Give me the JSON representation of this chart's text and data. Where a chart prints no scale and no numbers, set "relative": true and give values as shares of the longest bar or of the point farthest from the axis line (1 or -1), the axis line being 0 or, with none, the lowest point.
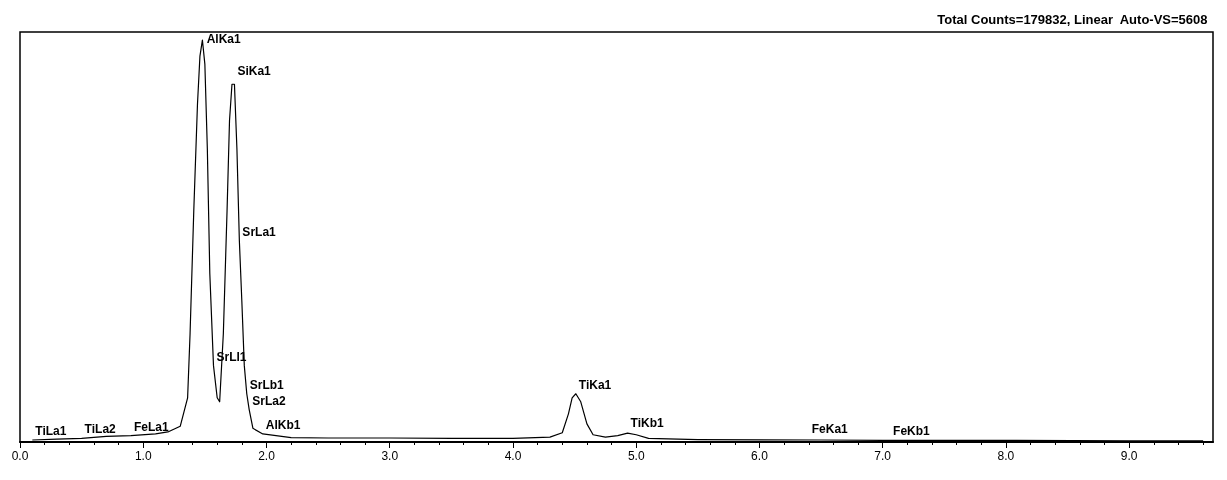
{
  "chart_data": {
    "type": "line",
    "title": "Total Counts=179832, Linear  Auto-VS=5608",
    "relative": true,
    "xlim": [
      0,
      9.68
    ],
    "xticks": [
      {
        "value": 0,
        "label": "0.0"
      },
      {
        "value": 1,
        "label": "1.0"
      },
      {
        "value": 2,
        "label": "2.0"
      },
      {
        "value": 3,
        "label": "3.0"
      },
      {
        "value": 4,
        "label": "4.0"
      },
      {
        "value": 5,
        "label": "5.0"
      },
      {
        "value": 6,
        "label": "6.0"
      },
      {
        "value": 7,
        "label": "7.0"
      },
      {
        "value": 8,
        "label": "8.0"
      },
      {
        "value": 9,
        "label": "9.0"
      }
    ],
    "series": [
      {
        "color": "#000000",
        "x": [
          0.1,
          0.3,
          0.5,
          0.7,
          0.9,
          1.1,
          1.2,
          1.3,
          1.36,
          1.38,
          1.41,
          1.44,
          1.46,
          1.48,
          1.5,
          1.52,
          1.54,
          1.57,
          1.6,
          1.62,
          1.65,
          1.68,
          1.7,
          1.72,
          1.74,
          1.76,
          1.78,
          1.8,
          1.82,
          1.84,
          1.86,
          1.89,
          1.97,
          2.2,
          2.5,
          3.0,
          3.5,
          4.0,
          4.3,
          4.4,
          4.45,
          4.48,
          4.51,
          4.55,
          4.6,
          4.65,
          4.75,
          4.85,
          4.93,
          5.0,
          5.1,
          5.5,
          6.5,
          7.0,
          8.0,
          9.0,
          9.6
        ],
        "values": [
          0.005,
          0.007,
          0.009,
          0.014,
          0.016,
          0.02,
          0.025,
          0.039,
          0.11,
          0.27,
          0.575,
          0.84,
          0.96,
          1.0,
          0.94,
          0.73,
          0.42,
          0.19,
          0.11,
          0.1,
          0.27,
          0.575,
          0.8,
          0.89,
          0.89,
          0.73,
          0.5,
          0.35,
          0.19,
          0.12,
          0.08,
          0.034,
          0.02,
          0.011,
          0.01,
          0.01,
          0.009,
          0.009,
          0.012,
          0.023,
          0.07,
          0.11,
          0.12,
          0.1,
          0.045,
          0.018,
          0.012,
          0.016,
          0.022,
          0.018,
          0.009,
          0.006,
          0.005,
          0.004,
          0.004,
          0.003,
          0.003
        ]
      }
    ],
    "annotations": [
      {
        "text": "AlKa1",
        "x": 1.49,
        "y": 0.98
      },
      {
        "text": "SiKa1",
        "x": 1.74,
        "y": 0.9
      },
      {
        "text": "SrLa1",
        "x": 1.78,
        "y": 0.5
      },
      {
        "text": "SrLb1",
        "x": 1.84,
        "y": 0.12
      },
      {
        "text": "SrLa2",
        "x": 1.86,
        "y": 0.08
      },
      {
        "text": "SrLl1",
        "x": 1.57,
        "y": 0.19
      },
      {
        "text": "AlKb1",
        "x": 1.97,
        "y": 0.02
      },
      {
        "text": "FeLa1",
        "x": 0.9,
        "y": 0.016
      },
      {
        "text": "TiLa1",
        "x": 0.1,
        "y": 0.005
      },
      {
        "text": "TiLa2",
        "x": 0.5,
        "y": 0.009
      },
      {
        "text": "TiKa1",
        "x": 4.51,
        "y": 0.12
      },
      {
        "text": "TiKb1",
        "x": 4.93,
        "y": 0.025
      },
      {
        "text": "FeKa1",
        "x": 6.4,
        "y": 0.01
      },
      {
        "text": "FeKb1",
        "x": 7.06,
        "y": 0.005
      }
    ],
    "grid": false,
    "marker": "none",
    "line_style": "solid"
  }
}
